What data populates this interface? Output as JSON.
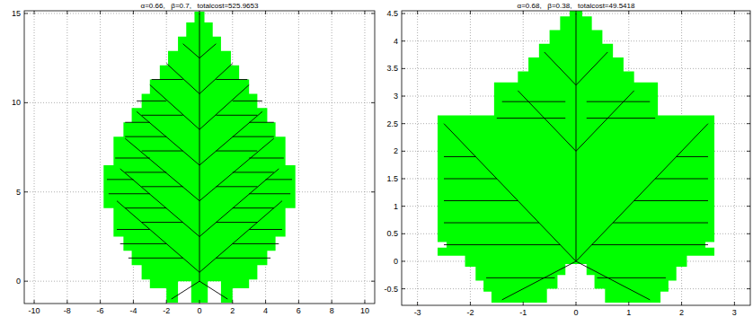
{
  "chart_data": [
    {
      "type": "leaf",
      "title": "α=0.66,   β=0.7,   totalcost=525.9653",
      "xlim": [
        -10.6,
        10.6
      ],
      "ylim": [
        -1.25,
        15.15
      ],
      "xticks": [
        -10,
        -8,
        -6,
        -4,
        -2,
        0,
        2,
        4,
        6,
        8,
        10
      ],
      "yticks": [
        0,
        5,
        10,
        15
      ],
      "grid": true,
      "color": "#00ff00",
      "outline": {
        "x": [
          0.3,
          0.3,
          0.8,
          0.8,
          1.3,
          1.3,
          1.9,
          1.9,
          2.4,
          2.4,
          3.0,
          3.0,
          3.5,
          3.5,
          4.1,
          4.1,
          4.6,
          4.6,
          5.2,
          5.2,
          5.8,
          5.8,
          5.2,
          5.2,
          4.6,
          4.6,
          4.1,
          4.1,
          3.5,
          3.5,
          3.0,
          3.0,
          2.0,
          2.0,
          1.3,
          1.3,
          0.5,
          0.5,
          -0.5,
          -0.5,
          -1.3,
          -1.3,
          -2.0,
          -2.0,
          -3.0,
          -3.0,
          -3.5,
          -3.5,
          -4.1,
          -4.1,
          -4.6,
          -4.6,
          -5.2,
          -5.2,
          -5.8,
          -5.8,
          -5.2,
          -5.2,
          -4.6,
          -4.6,
          -4.1,
          -4.1,
          -3.5,
          -3.5,
          -3.0,
          -3.0,
          -2.4,
          -2.4,
          -1.9,
          -1.9,
          -1.3,
          -1.3,
          -0.8,
          -0.8,
          -0.3,
          -0.3
        ],
        "y": [
          15.1,
          14.5,
          14.5,
          13.7,
          13.7,
          12.9,
          12.9,
          12.1,
          12.1,
          11.3,
          11.3,
          10.5,
          10.5,
          9.7,
          9.7,
          8.9,
          8.9,
          8.1,
          8.1,
          6.5,
          6.5,
          4.1,
          4.1,
          2.5,
          2.5,
          1.7,
          1.7,
          0.9,
          0.9,
          0.1,
          0.1,
          -0.4,
          -0.4,
          -1.2,
          -1.2,
          0.0,
          0.0,
          -1.2,
          -1.2,
          0.0,
          0.0,
          -1.2,
          -1.2,
          -0.4,
          -0.4,
          0.1,
          0.1,
          0.9,
          0.9,
          1.7,
          1.7,
          2.5,
          2.5,
          4.1,
          4.1,
          6.5,
          6.5,
          8.1,
          8.1,
          8.9,
          8.9,
          9.7,
          9.7,
          10.5,
          10.5,
          11.3,
          11.3,
          12.1,
          12.1,
          12.9,
          12.9,
          13.7,
          13.7,
          14.5,
          14.5,
          15.1
        ]
      },
      "veins": [
        [
          0,
          0,
          0,
          15
        ],
        [
          0,
          0.5,
          5,
          4.5
        ],
        [
          0,
          2.5,
          4.8,
          6.3
        ],
        [
          0,
          4.5,
          4.5,
          8
        ],
        [
          0,
          6.5,
          3.8,
          9.5
        ],
        [
          0,
          8.5,
          3,
          11
        ],
        [
          0,
          10.5,
          2,
          12.2
        ],
        [
          0,
          12.5,
          1,
          13.3
        ],
        [
          0,
          0.5,
          -5,
          4.5
        ],
        [
          0,
          2.5,
          -4.8,
          6.3
        ],
        [
          0,
          4.5,
          -4.5,
          8
        ],
        [
          0,
          6.5,
          -3.8,
          9.5
        ],
        [
          0,
          8.5,
          -3,
          11
        ],
        [
          0,
          10.5,
          -2,
          12.2
        ],
        [
          0,
          12.5,
          -1,
          13.3
        ],
        [
          0,
          0,
          1.7,
          -1.0
        ],
        [
          0,
          0,
          -1.7,
          -1.0
        ],
        [
          1,
          1.3,
          4.3,
          1.3
        ],
        [
          2,
          2.1,
          4.8,
          2.1
        ],
        [
          3,
          2.9,
          5.0,
          2.9
        ],
        [
          1,
          3.3,
          3.5,
          3.3
        ],
        [
          2,
          4.1,
          4.5,
          4.1
        ],
        [
          3,
          4.9,
          5.5,
          4.9
        ],
        [
          4,
          5.7,
          5.6,
          5.7
        ],
        [
          1,
          5.3,
          3.5,
          5.3
        ],
        [
          2,
          6.1,
          4.5,
          6.1
        ],
        [
          3,
          6.9,
          5.1,
          6.9
        ],
        [
          1,
          7.3,
          3.5,
          7.3
        ],
        [
          2,
          8.1,
          4.5,
          8.1
        ],
        [
          3,
          8.9,
          4.5,
          8.9
        ],
        [
          1,
          9.3,
          3.5,
          9.3
        ],
        [
          2,
          10.1,
          3.8,
          10.1
        ],
        [
          1,
          11.3,
          2.9,
          11.3
        ],
        [
          -1,
          1.3,
          -4.3,
          1.3
        ],
        [
          -2,
          2.1,
          -4.8,
          2.1
        ],
        [
          -3,
          2.9,
          -5.0,
          2.9
        ],
        [
          -1,
          3.3,
          -3.5,
          3.3
        ],
        [
          -2,
          4.1,
          -4.5,
          4.1
        ],
        [
          -3,
          4.9,
          -5.5,
          4.9
        ],
        [
          -4,
          5.7,
          -5.6,
          5.7
        ],
        [
          -1,
          5.3,
          -3.5,
          5.3
        ],
        [
          -2,
          6.1,
          -4.5,
          6.1
        ],
        [
          -3,
          6.9,
          -5.1,
          6.9
        ],
        [
          -1,
          7.3,
          -3.5,
          7.3
        ],
        [
          -2,
          8.1,
          -4.5,
          8.1
        ],
        [
          -3,
          8.9,
          -4.5,
          8.9
        ],
        [
          -1,
          9.3,
          -3.5,
          9.3
        ],
        [
          -2,
          10.1,
          -3.8,
          10.1
        ],
        [
          -1,
          11.3,
          -2.9,
          11.3
        ]
      ]
    },
    {
      "type": "leaf",
      "title": "α=0.68,   β=0.38,   totalcost=49.5418",
      "xlim": [
        -3.3,
        3.3
      ],
      "ylim": [
        -0.8,
        4.55
      ],
      "xticks": [
        -3,
        -2,
        -1,
        0,
        1,
        2,
        3
      ],
      "yticks": [
        -0.5,
        0,
        0.5,
        1,
        1.5,
        2,
        2.5,
        3,
        3.5,
        4,
        4.5
      ],
      "grid": true,
      "color": "#00ff00",
      "outline": {
        "x": [
          0.12,
          0.12,
          0.3,
          0.3,
          0.5,
          0.5,
          0.7,
          0.7,
          0.9,
          0.9,
          1.1,
          1.1,
          1.55,
          1.55,
          2.62,
          2.62,
          2.45,
          2.45,
          2.62,
          2.62,
          2.1,
          2.1,
          1.9,
          1.9,
          1.75,
          1.75,
          1.6,
          1.6,
          0.55,
          0.55,
          0.35,
          0.35,
          0.2,
          0.2,
          -0.2,
          -0.2,
          -0.35,
          -0.35,
          -0.55,
          -0.55,
          -1.6,
          -1.6,
          -1.75,
          -1.75,
          -1.9,
          -1.9,
          -2.1,
          -2.1,
          -2.62,
          -2.62,
          -2.45,
          -2.45,
          -2.62,
          -2.62,
          -1.55,
          -1.55,
          -1.1,
          -1.1,
          -0.9,
          -0.9,
          -0.7,
          -0.7,
          -0.5,
          -0.5,
          -0.3,
          -0.3,
          -0.12,
          -0.12
        ],
        "y": [
          4.6,
          4.45,
          4.45,
          4.2,
          4.2,
          3.95,
          3.95,
          3.7,
          3.7,
          3.45,
          3.45,
          3.25,
          3.25,
          2.65,
          2.65,
          0.35,
          0.35,
          0.25,
          0.25,
          0.1,
          0.1,
          -0.1,
          -0.1,
          -0.35,
          -0.35,
          -0.55,
          -0.55,
          -0.75,
          -0.75,
          -0.5,
          -0.5,
          -0.25,
          -0.25,
          -0.05,
          -0.05,
          -0.25,
          -0.25,
          -0.5,
          -0.5,
          -0.75,
          -0.75,
          -0.55,
          -0.55,
          -0.35,
          -0.35,
          -0.1,
          -0.1,
          0.1,
          0.1,
          0.25,
          0.25,
          0.35,
          0.35,
          2.65,
          2.65,
          3.25,
          3.25,
          3.45,
          3.45,
          3.7,
          3.7,
          3.95,
          3.95,
          4.2,
          4.2,
          4.45,
          4.45,
          4.6
        ]
      },
      "veins": [
        [
          0,
          0,
          0,
          4.5
        ],
        [
          0,
          0,
          2.5,
          2.5
        ],
        [
          0,
          0,
          -2.5,
          2.5
        ],
        [
          0,
          2.0,
          1.1,
          3.1
        ],
        [
          0,
          2.0,
          -1.1,
          3.1
        ],
        [
          0,
          3.2,
          0.6,
          3.8
        ],
        [
          0,
          3.2,
          -0.6,
          3.8
        ],
        [
          0,
          0,
          1.4,
          -0.7
        ],
        [
          0,
          0,
          -1.4,
          -0.7
        ],
        [
          0.3,
          0.3,
          2.5,
          0.3
        ],
        [
          -0.3,
          0.3,
          -2.5,
          0.3
        ],
        [
          0.7,
          0.7,
          2.5,
          0.7
        ],
        [
          1.1,
          1.1,
          2.5,
          1.1
        ],
        [
          1.5,
          1.5,
          2.5,
          1.5
        ],
        [
          1.9,
          1.9,
          2.5,
          1.9
        ],
        [
          -0.7,
          0.7,
          -2.5,
          0.7
        ],
        [
          -1.1,
          1.1,
          -2.5,
          1.1
        ],
        [
          -1.5,
          1.5,
          -2.5,
          1.5
        ],
        [
          -1.9,
          1.9,
          -2.5,
          1.9
        ],
        [
          0.2,
          2.6,
          1.5,
          2.6
        ],
        [
          0.2,
          2.9,
          1.4,
          2.9
        ],
        [
          -0.2,
          2.6,
          -1.5,
          2.6
        ],
        [
          -0.2,
          2.9,
          -1.4,
          2.9
        ],
        [
          0.4,
          -0.3,
          1.7,
          -0.3
        ],
        [
          -0.4,
          -0.3,
          -1.7,
          -0.3
        ]
      ]
    }
  ]
}
